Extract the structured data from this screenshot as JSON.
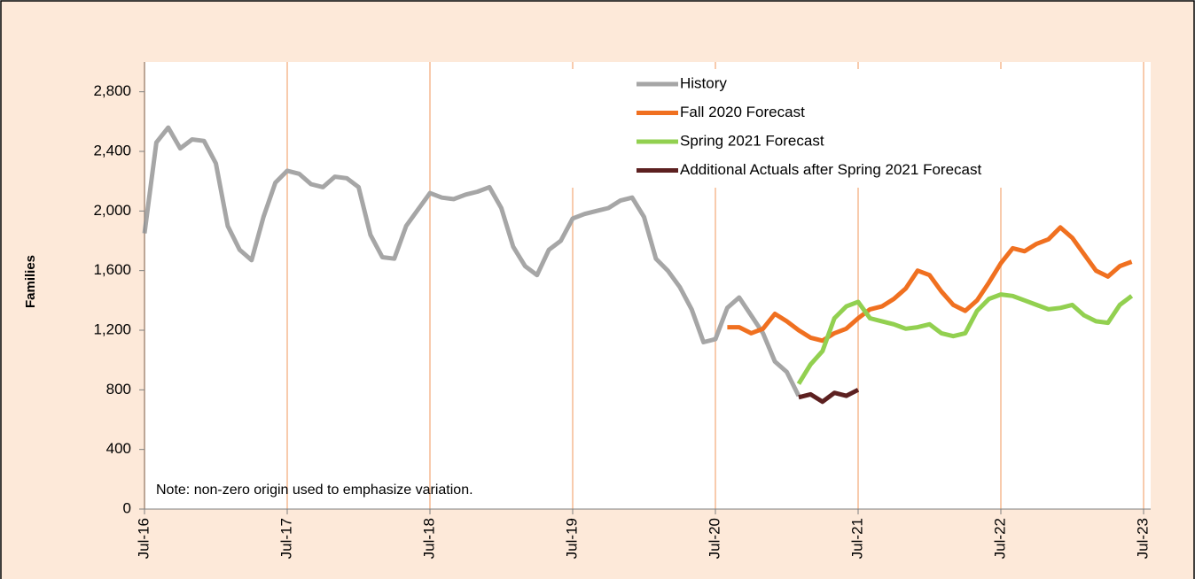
{
  "chart_data": {
    "type": "line",
    "y_label": "Families",
    "note": "Note: non-zero origin used to emphasize variation.",
    "x": [
      "2016-07",
      "2016-08",
      "2016-09",
      "2016-10",
      "2016-11",
      "2016-12",
      "2017-01",
      "2017-02",
      "2017-03",
      "2017-04",
      "2017-05",
      "2017-06",
      "2017-07",
      "2017-08",
      "2017-09",
      "2017-10",
      "2017-11",
      "2017-12",
      "2018-01",
      "2018-02",
      "2018-03",
      "2018-04",
      "2018-05",
      "2018-06",
      "2018-07",
      "2018-08",
      "2018-09",
      "2018-10",
      "2018-11",
      "2018-12",
      "2019-01",
      "2019-02",
      "2019-03",
      "2019-04",
      "2019-05",
      "2019-06",
      "2019-07",
      "2019-08",
      "2019-09",
      "2019-10",
      "2019-11",
      "2019-12",
      "2020-01",
      "2020-02",
      "2020-03",
      "2020-04",
      "2020-05",
      "2020-06",
      "2020-07",
      "2020-08",
      "2020-09",
      "2020-10",
      "2020-11",
      "2020-12",
      "2021-01",
      "2021-02",
      "2021-03",
      "2021-04",
      "2021-05",
      "2021-06",
      "2021-07",
      "2021-08",
      "2021-09",
      "2021-10",
      "2021-11",
      "2021-12",
      "2022-01",
      "2022-02",
      "2022-03",
      "2022-04",
      "2022-05",
      "2022-06",
      "2022-07",
      "2022-08",
      "2022-09",
      "2022-10",
      "2022-11",
      "2022-12",
      "2023-01",
      "2023-02",
      "2023-03",
      "2023-04",
      "2023-05",
      "2023-06"
    ],
    "series": [
      {
        "name": "History",
        "color": "#a6a6a6",
        "values": [
          1850,
          2460,
          2560,
          2420,
          2480,
          2470,
          2320,
          1900,
          1740,
          1670,
          1960,
          2190,
          2270,
          2250,
          2180,
          2160,
          2230,
          2220,
          2160,
          1840,
          1690,
          1680,
          1900,
          2010,
          2120,
          2090,
          2080,
          2110,
          2130,
          2160,
          2020,
          1760,
          1630,
          1570,
          1740,
          1800,
          1950,
          1980,
          2000,
          2020,
          2070,
          2090,
          1960,
          1680,
          1600,
          1490,
          1340,
          1120,
          1140,
          1350,
          1420,
          1300,
          1180,
          990,
          920,
          760,
          null,
          null,
          null,
          null,
          null,
          null,
          null,
          null,
          null,
          null,
          null,
          null,
          null,
          null,
          null,
          null,
          null,
          null,
          null,
          null,
          null,
          null,
          null,
          null,
          null,
          null,
          null,
          null
        ]
      },
      {
        "name": "Fall 2020 Forecast",
        "color": "#f07020",
        "values": [
          null,
          null,
          null,
          null,
          null,
          null,
          null,
          null,
          null,
          null,
          null,
          null,
          null,
          null,
          null,
          null,
          null,
          null,
          null,
          null,
          null,
          null,
          null,
          null,
          null,
          null,
          null,
          null,
          null,
          null,
          null,
          null,
          null,
          null,
          null,
          null,
          null,
          null,
          null,
          null,
          null,
          null,
          null,
          null,
          null,
          null,
          null,
          null,
          null,
          1220,
          1220,
          1180,
          1210,
          1310,
          1260,
          1200,
          1150,
          1130,
          1180,
          1210,
          1280,
          1340,
          1360,
          1410,
          1480,
          1600,
          1570,
          1460,
          1370,
          1330,
          1400,
          1520,
          1650,
          1750,
          1730,
          1780,
          1810,
          1890,
          1820,
          1710,
          1600,
          1560,
          1630,
          1660
        ]
      },
      {
        "name": "Spring 2021 Forecast",
        "color": "#92d050",
        "values": [
          null,
          null,
          null,
          null,
          null,
          null,
          null,
          null,
          null,
          null,
          null,
          null,
          null,
          null,
          null,
          null,
          null,
          null,
          null,
          null,
          null,
          null,
          null,
          null,
          null,
          null,
          null,
          null,
          null,
          null,
          null,
          null,
          null,
          null,
          null,
          null,
          null,
          null,
          null,
          null,
          null,
          null,
          null,
          null,
          null,
          null,
          null,
          null,
          null,
          null,
          null,
          null,
          null,
          null,
          null,
          840,
          970,
          1060,
          1280,
          1360,
          1390,
          1280,
          1260,
          1240,
          1210,
          1220,
          1240,
          1180,
          1160,
          1180,
          1330,
          1410,
          1440,
          1430,
          1400,
          1370,
          1340,
          1350,
          1370,
          1300,
          1260,
          1250,
          1370,
          1430
        ]
      },
      {
        "name": "Additional Actuals after Spring 2021 Forecast",
        "color": "#5c2020",
        "values": [
          null,
          null,
          null,
          null,
          null,
          null,
          null,
          null,
          null,
          null,
          null,
          null,
          null,
          null,
          null,
          null,
          null,
          null,
          null,
          null,
          null,
          null,
          null,
          null,
          null,
          null,
          null,
          null,
          null,
          null,
          null,
          null,
          null,
          null,
          null,
          null,
          null,
          null,
          null,
          null,
          null,
          null,
          null,
          null,
          null,
          null,
          null,
          null,
          null,
          null,
          null,
          null,
          null,
          null,
          null,
          750,
          770,
          720,
          780,
          760,
          800,
          null,
          null,
          null,
          null,
          null,
          null,
          null,
          null,
          null,
          null,
          null,
          null,
          null,
          null,
          null,
          null,
          null,
          null,
          null,
          null,
          null,
          null,
          null
        ]
      }
    ],
    "xlim": [
      "2016-07",
      "2023-07"
    ],
    "xticks": [
      {
        "value": "2016-07",
        "label": "Jul-16"
      },
      {
        "value": "2017-07",
        "label": "Jul-17"
      },
      {
        "value": "2018-07",
        "label": "Jul-18"
      },
      {
        "value": "2019-07",
        "label": "Jul-19"
      },
      {
        "value": "2020-07",
        "label": "Jul-20"
      },
      {
        "value": "2021-07",
        "label": "Jul-21"
      },
      {
        "value": "2022-07",
        "label": "Jul-22"
      },
      {
        "value": "2023-07",
        "label": "Jul-23"
      }
    ],
    "ylim": [
      0,
      3000
    ],
    "yticks": [
      0,
      {
        "value": 400,
        "label": "400"
      },
      {
        "value": 800,
        "label": "800"
      },
      {
        "value": 1200,
        "label": "1,200"
      },
      {
        "value": 1600,
        "label": "1,600"
      },
      {
        "value": 2000,
        "label": "2,000"
      },
      {
        "value": 2400,
        "label": "2,400"
      },
      {
        "value": 2800,
        "label": "2,800"
      }
    ],
    "grid": "x",
    "legend": "top-right"
  }
}
